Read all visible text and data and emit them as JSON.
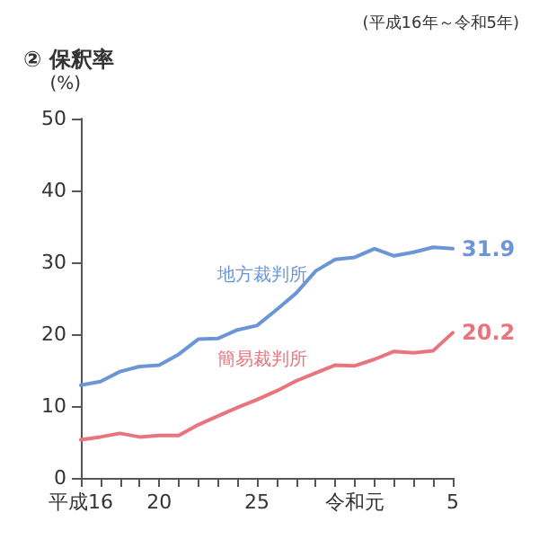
{
  "chart_data": {
    "type": "line",
    "title": "② 保釈率",
    "subtitle": "(平成16年～令和5年)",
    "ylabel": "(%)",
    "categories": [
      "平成16",
      null,
      null,
      null,
      "20",
      null,
      null,
      null,
      null,
      "25",
      null,
      null,
      null,
      null,
      "令和元",
      null,
      null,
      null,
      null,
      "5"
    ],
    "series": [
      {
        "name": "地方裁判所",
        "color": "#6b95d6",
        "values": [
          12.9,
          13.4,
          14.8,
          15.5,
          15.7,
          17.2,
          19.3,
          19.4,
          20.6,
          21.2,
          23.4,
          25.7,
          28.8,
          30.4,
          30.7,
          31.9,
          30.9,
          31.4,
          32.1,
          31.9
        ],
        "value_labels": [
          null,
          null,
          null,
          null,
          null,
          null,
          null,
          null,
          null,
          null,
          null,
          null,
          null,
          null,
          null,
          null,
          null,
          null,
          null,
          "31.9"
        ]
      },
      {
        "name": "簡易裁判所",
        "color": "#e8747c",
        "values": [
          5.3,
          5.7,
          6.2,
          5.7,
          5.9,
          5.9,
          7.4,
          8.6,
          9.8,
          10.9,
          12.1,
          13.5,
          14.6,
          15.7,
          15.6,
          16.5,
          17.6,
          17.4,
          17.7,
          20.2
        ],
        "value_labels": [
          null,
          null,
          null,
          null,
          null,
          null,
          null,
          null,
          null,
          null,
          null,
          null,
          null,
          null,
          null,
          null,
          null,
          null,
          null,
          "20.2"
        ]
      }
    ],
    "ylim": [
      0,
      50
    ],
    "yticks": [
      0,
      10,
      20,
      30,
      40,
      50
    ],
    "grid": false,
    "legend": false,
    "marker": "none",
    "line_style": "solid"
  }
}
